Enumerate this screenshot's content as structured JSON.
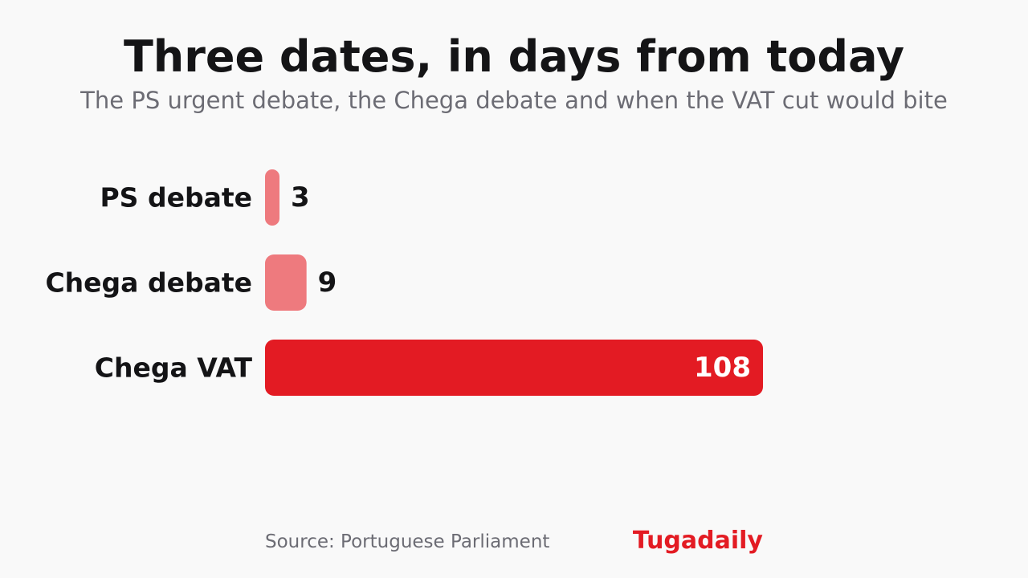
{
  "header": {
    "title": "Three dates, in days from today",
    "subtitle": "The PS urgent debate, the Chega debate and when the VAT cut would bite"
  },
  "footer": {
    "source": "Source: Portuguese Parliament",
    "brand": "Tugadaily"
  },
  "colors": {
    "brand": "#e31b23",
    "bar_faint": "#ee7a7e",
    "bar_mid": "#ee7a7e",
    "bar_strong": "#e31b23",
    "label_text": "#141416",
    "value_inside": "#ffffff"
  },
  "chart_data": {
    "type": "bar",
    "orientation": "horizontal",
    "title": "Three dates, in days from today",
    "subtitle": "The PS urgent debate, the Chega debate and when the VAT cut would bite",
    "categories": [
      "PS debate",
      "Chega debate",
      "Chega VAT"
    ],
    "values": [
      3,
      9,
      108
    ],
    "value_labels": [
      "3",
      "9",
      "108"
    ],
    "xlim": [
      0,
      108
    ],
    "grid": false,
    "legend": "none"
  }
}
